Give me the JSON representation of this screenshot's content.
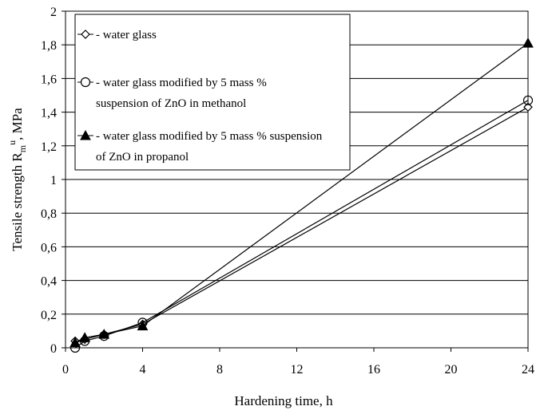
{
  "chart_data": {
    "type": "line",
    "xlabel": "Hardening time, h",
    "ylabel": "Tensile strength  R",
    "ylabel_sub": "m",
    "ylabel_sup": "u",
    "ylabel_unit": ",  MPa",
    "xlim": [
      0,
      24
    ],
    "ylim": [
      0,
      2
    ],
    "x_ticks": [
      0,
      4,
      8,
      12,
      16,
      20,
      24
    ],
    "y_ticks": [
      0,
      0.2,
      0.4,
      0.6,
      0.8,
      1,
      1.2,
      1.4,
      1.6,
      1.8,
      2
    ],
    "x_tick_labels": [
      "0",
      "4",
      "8",
      "12",
      "16",
      "20",
      "24"
    ],
    "y_tick_labels": [
      "0",
      "0,2",
      "0,4",
      "0,6",
      "0,8",
      "1",
      "1,2",
      "1,4",
      "1,6",
      "1,8",
      "2"
    ],
    "grid": "horizontal",
    "legend_position": "top-left",
    "series": [
      {
        "name": "- water glass",
        "marker": "diamond",
        "x": [
          0.5,
          1,
          2,
          4,
          24
        ],
        "y": [
          0.04,
          0.05,
          0.08,
          0.14,
          1.43
        ]
      },
      {
        "name": "- water glass modified by 5 mass % suspension of ZnO in methanol",
        "legend_lines": [
          "- water glass modified by 5 mass %",
          "suspension of ZnO in methanol"
        ],
        "marker": "circle",
        "x": [
          0.5,
          1,
          2,
          4,
          24
        ],
        "y": [
          0.0,
          0.04,
          0.07,
          0.15,
          1.47
        ]
      },
      {
        "name": "- water glass modified by 5 mass % suspension of ZnO in propanol",
        "legend_lines": [
          "- water glass modified by 5 mass % suspension",
          "of ZnO in propanol"
        ],
        "marker": "triangle",
        "x": [
          0.5,
          1,
          2,
          4,
          24
        ],
        "y": [
          0.03,
          0.06,
          0.08,
          0.13,
          1.81
        ]
      }
    ]
  }
}
